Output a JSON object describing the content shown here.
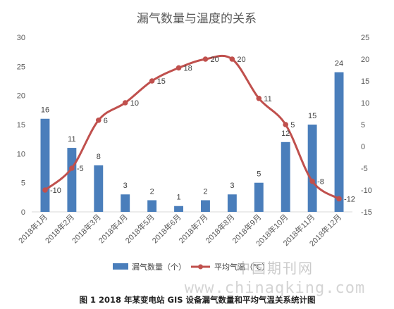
{
  "chart_data": {
    "type": "bar+line",
    "title": "漏气数量与温度的关系",
    "categories": [
      "2018年1月",
      "2018年2月",
      "2018年3月",
      "2018年4月",
      "2018年5月",
      "2018年6月",
      "2018年7月",
      "2018年8月",
      "2018年9月",
      "2018年10月",
      "2018年11月",
      "2018年12月"
    ],
    "series": [
      {
        "name": "漏气数量（个）",
        "type": "bar",
        "axis": "left",
        "color": "#4a7ebb",
        "values": [
          16,
          11,
          8,
          3,
          2,
          1,
          2,
          3,
          5,
          12,
          15,
          24
        ]
      },
      {
        "name": "平均气温（℃）",
        "type": "line",
        "axis": "right",
        "color": "#c0504d",
        "values": [
          -10,
          -5,
          6,
          10,
          15,
          18,
          20,
          20,
          11,
          5,
          -8,
          -12
        ]
      }
    ],
    "y_left": {
      "min": 0,
      "max": 30,
      "ticks": [
        0,
        5,
        10,
        15,
        20,
        25,
        30
      ]
    },
    "y_right": {
      "min": -15,
      "max": 25,
      "ticks": [
        -15,
        -10,
        -5,
        0,
        5,
        10,
        15,
        20,
        25
      ]
    },
    "legend_position": "bottom",
    "grid": false
  },
  "caption": "图 1 2018 年某变电站 GIS 设备漏气数量和平均气温关系统计图",
  "watermark": {
    "cn": "中国期刊网",
    "url": "www.chinaqking.com"
  }
}
